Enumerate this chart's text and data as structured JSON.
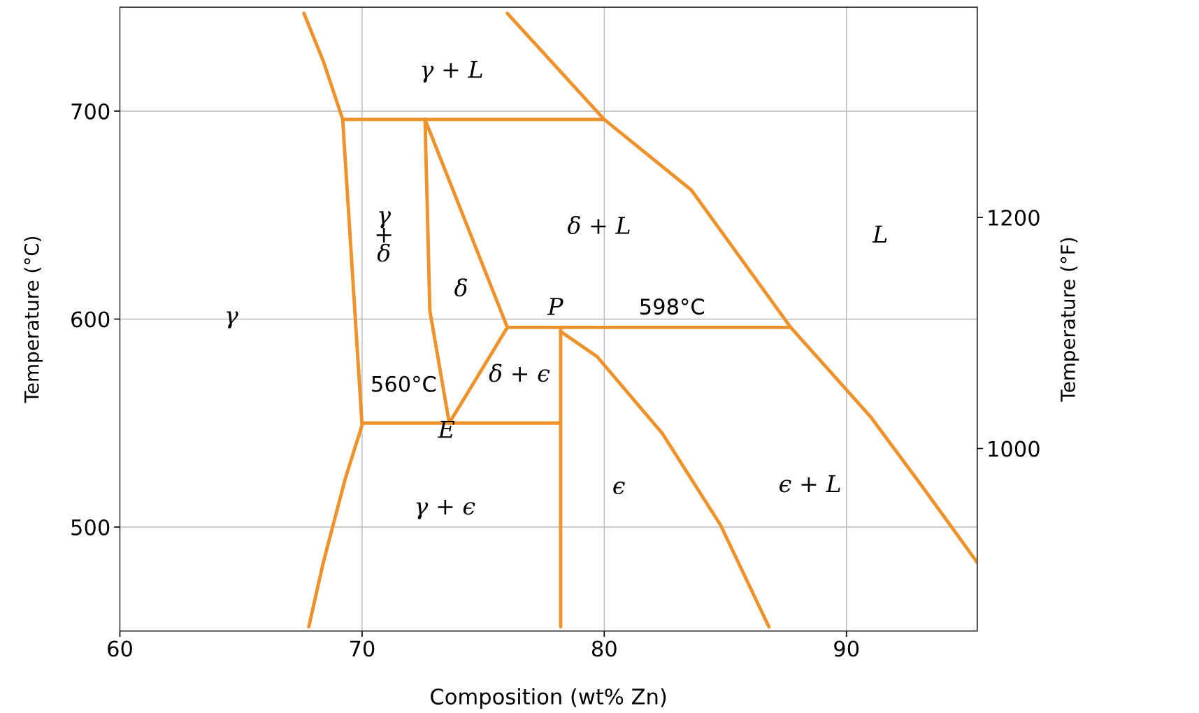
{
  "chart_data": {
    "type": "line",
    "xlabel": "Composition (wt% Zn)",
    "ylabel": "Temperature (°C)",
    "y2label": "Temperature (°F)",
    "xlim": [
      60,
      95.4
    ],
    "xticks": [
      60,
      70,
      80,
      90
    ],
    "ylim": [
      450,
      750
    ],
    "yticks": [
      500,
      600,
      700
    ],
    "y2lim": [
      842,
      1382
    ],
    "y2ticks": [
      1000,
      1200
    ],
    "grid": true,
    "line_style": "solid",
    "marker": "none",
    "series": [
      {
        "color": "#f0922b",
        "x": [
          67.6,
          68.4,
          69.2,
          70.0,
          69.3,
          68.4,
          67.8
        ],
        "values": [
          747,
          724,
          696,
          549,
          523,
          483,
          452
        ]
      },
      {
        "color": "#f0922b",
        "x": [
          69.2,
          80.0
        ],
        "values": [
          696,
          696
        ]
      },
      {
        "color": "#f0922b",
        "x": [
          76.0,
          80.0,
          83.6,
          87.7,
          91.0,
          93.1,
          95.4
        ],
        "values": [
          747,
          696,
          662,
          596,
          553,
          520,
          483
        ]
      },
      {
        "color": "#f0922b",
        "x": [
          72.6,
          72.8,
          73.6
        ],
        "values": [
          696,
          604,
          550
        ]
      },
      {
        "color": "#f0922b",
        "x": [
          72.6,
          76.0
        ],
        "values": [
          696,
          596
        ]
      },
      {
        "color": "#f0922b",
        "x": [
          76.0,
          73.6
        ],
        "values": [
          596,
          550
        ]
      },
      {
        "color": "#f0922b",
        "x": [
          70.0,
          78.2
        ],
        "values": [
          550,
          550
        ]
      },
      {
        "color": "#f0922b",
        "x": [
          76.0,
          87.7
        ],
        "values": [
          596,
          596
        ]
      },
      {
        "color": "#f0922b",
        "x": [
          78.2,
          78.2
        ],
        "values": [
          596,
          452
        ]
      },
      {
        "color": "#f0922b",
        "x": [
          78.2,
          79.7,
          82.4,
          84.8,
          86.8
        ],
        "values": [
          594,
          582,
          545,
          501,
          452
        ]
      }
    ],
    "annotations": [
      "γ + L",
      "γ\n+\nδ",
      "δ + L",
      "L",
      "δ",
      "P",
      "598°C",
      "γ",
      "560°C",
      "δ + ϵ",
      "E",
      "ϵ",
      "ϵ + L",
      "γ + ϵ"
    ]
  }
}
